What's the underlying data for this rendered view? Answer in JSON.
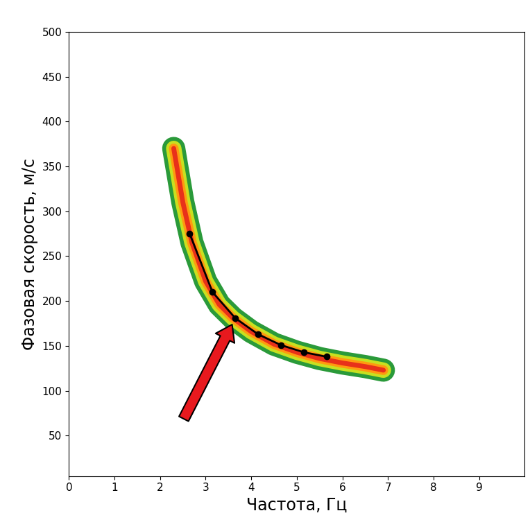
{
  "chart_data": {
    "type": "line",
    "x_label": "Частота, Гц",
    "y_label": "Фазовая скорость, м/с",
    "xlim": [
      0,
      10
    ],
    "xticks": [
      0,
      1,
      2,
      3,
      4,
      5,
      6,
      7,
      8,
      9
    ],
    "ylim": [
      5,
      500
    ],
    "yticks": [
      50,
      100,
      150,
      200,
      250,
      300,
      350,
      400,
      450,
      500
    ],
    "grid": false,
    "series": [
      {
        "type": "band",
        "color": "#e8311a",
        "x": [
          2.3,
          2.5,
          2.7,
          3.0,
          3.3,
          3.6,
          4.0,
          4.5,
          5.0,
          5.5,
          6.0,
          6.5,
          6.9
        ],
        "values": [
          370,
          310,
          265,
          222,
          196,
          181,
          166,
          152,
          143,
          136,
          131,
          127,
          123
        ]
      },
      {
        "type": "line",
        "color": "#000000",
        "marker": "o",
        "line_style": "solid",
        "x": [
          2.65,
          3.15,
          3.65,
          4.15,
          4.65,
          5.15,
          5.65
        ],
        "values": [
          275,
          210,
          181,
          163,
          151,
          143,
          138
        ]
      }
    ]
  }
}
